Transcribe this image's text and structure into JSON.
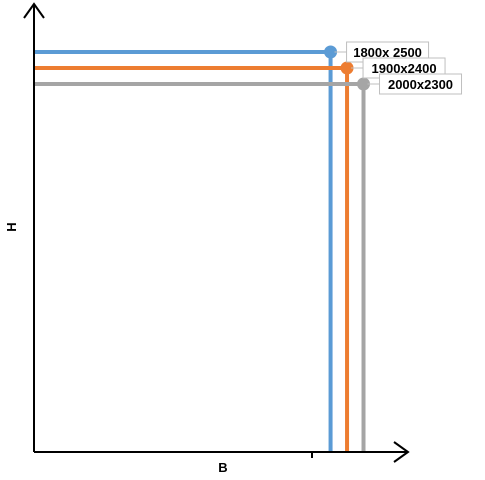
{
  "chart_data": {
    "type": "scatter",
    "title": "",
    "xlabel": "B",
    "ylabel": "H",
    "xlim": [
      0,
      2270
    ],
    "ylim": [
      0,
      2800
    ],
    "grid": false,
    "legend": "none",
    "series": [
      {
        "x": 1800,
        "y": 2500,
        "label": "1800x 2500",
        "color": "#5b9bd5"
      },
      {
        "x": 1900,
        "y": 2400,
        "label": "1900x2400",
        "color": "#ed7d31"
      },
      {
        "x": 2000,
        "y": 2300,
        "label": "2000x2300",
        "color": "#a5a5a5"
      }
    ]
  }
}
